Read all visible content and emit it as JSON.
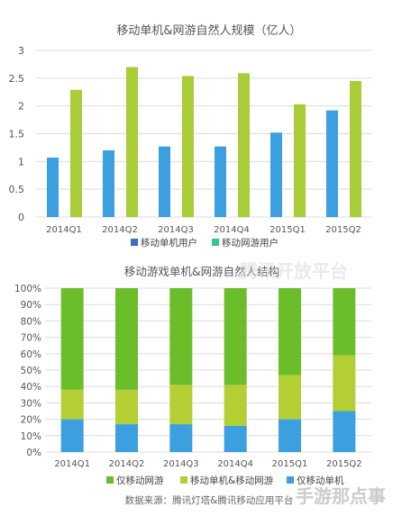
{
  "chart_data": [
    {
      "type": "bar",
      "title": "移动单机&网游自然人规模（亿人）",
      "categories": [
        "2014Q1",
        "2014Q2",
        "2014Q3",
        "2014Q4",
        "2015Q1",
        "2015Q2"
      ],
      "series": [
        {
          "name": "移动单机用户",
          "values": [
            1.07,
            1.2,
            1.27,
            1.27,
            1.52,
            1.92
          ],
          "color": "#3b9fe0"
        },
        {
          "name": "移动网游用户",
          "values": [
            2.29,
            2.7,
            2.54,
            2.59,
            2.03,
            2.45
          ],
          "color": "#a9cd37"
        }
      ],
      "yticks": [
        "0",
        "0.5",
        "1",
        "1.5",
        "2",
        "2.5",
        "3"
      ],
      "ylim": [
        0,
        3
      ],
      "grid": true,
      "legend": "bottom",
      "legend_colors": [
        "#3d6cc0",
        "#33c690"
      ]
    },
    {
      "type": "bar",
      "stacked": true,
      "title": "移动游戏单机&网游自然人结构",
      "categories": [
        "2014Q1",
        "2014Q2",
        "2014Q3",
        "2014Q4",
        "2015Q1",
        "2015Q2"
      ],
      "series": [
        {
          "name": "仅移动单机",
          "values": [
            20,
            17,
            17,
            16,
            20,
            25
          ],
          "color": "#3b9fe0"
        },
        {
          "name": "移动单机&移动网游",
          "values": [
            18,
            21,
            24,
            25,
            27,
            34
          ],
          "color": "#b3cf34"
        },
        {
          "name": "仅移动网游",
          "values": [
            62,
            62,
            59,
            59,
            53,
            41
          ],
          "color": "#6cbd2a"
        }
      ],
      "legend_order": [
        2,
        1,
        0
      ],
      "yticks": [
        "0%",
        "10%",
        "20%",
        "30%",
        "40%",
        "50%",
        "60%",
        "70%",
        "80%",
        "90%",
        "100%"
      ],
      "ylim": [
        0,
        100
      ],
      "grid": true,
      "legend": "bottom"
    }
  ],
  "source": "数据来源：腾讯灯塔&腾讯移动应用平台",
  "watermark_top": "腾讯开放平台",
  "watermark_bottom": "手游那点事"
}
